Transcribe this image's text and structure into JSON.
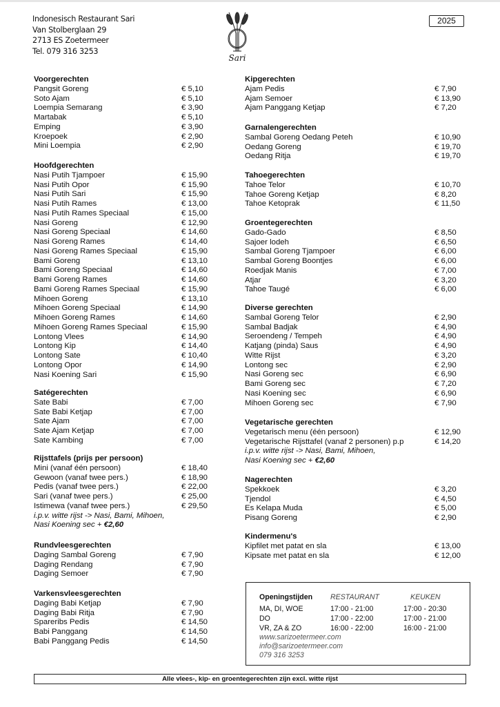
{
  "header": {
    "address_lines": [
      "Indonesisch Restaurant Sari",
      "Van Stolberglaan 29",
      "2713 ES Zoetermeer",
      "Tel. 079 316 3253"
    ],
    "logo_text": "Sari",
    "year": "2025"
  },
  "left_sections": [
    {
      "title": "Voorgerechten",
      "items": [
        {
          "name": "Pangsit Goreng",
          "price": "€ 5,10"
        },
        {
          "name": "Soto Ajam",
          "price": "€ 5,10"
        },
        {
          "name": "Loempia Semarang",
          "price": "€ 3,90"
        },
        {
          "name": "Martabak",
          "price": "€ 5,10"
        },
        {
          "name": "Emping",
          "price": "€ 3,90"
        },
        {
          "name": "Kroepoek",
          "price": "€ 2,90"
        },
        {
          "name": "Mini Loempia",
          "price": "€ 2,90"
        }
      ]
    },
    {
      "title": "Hoofdgerechten",
      "items": [
        {
          "name": "Nasi Putih Tjampoer",
          "price": "€ 15,90"
        },
        {
          "name": "Nasi Putih Opor",
          "price": "€ 15,90"
        },
        {
          "name": "Nasi Putih Sari",
          "price": "€ 15,90"
        },
        {
          "name": "Nasi Putih Rames",
          "price": "€ 13,00"
        },
        {
          "name": "Nasi Putih Rames Speciaal",
          "price": "€ 15,00"
        },
        {
          "name": "Nasi Goreng",
          "price": "€ 12,90"
        },
        {
          "name": "Nasi Goreng Speciaal",
          "price": "€ 14,60"
        },
        {
          "name": "Nasi Goreng Rames",
          "price": "€ 14,40"
        },
        {
          "name": "Nasi Goreng Rames Speciaal",
          "price": "€ 15,90"
        },
        {
          "name": "Bami Goreng",
          "price": "€ 13,10"
        },
        {
          "name": "Bami Goreng Speciaal",
          "price": "€ 14,60"
        },
        {
          "name": "Bami Goreng Rames",
          "price": "€ 14,60"
        },
        {
          "name": "Bami Goreng Rames Speciaal",
          "price": "€ 15,90"
        },
        {
          "name": "Mihoen Goreng",
          "price": "€ 13,10"
        },
        {
          "name": "Mihoen Goreng Speciaal",
          "price": "€ 14,90"
        },
        {
          "name": "Mihoen Goreng Rames",
          "price": "€ 14,60"
        },
        {
          "name": "Mihoen Goreng Rames Speciaal",
          "price": "€ 15,90"
        },
        {
          "name": "Lontong Vlees",
          "price": "€ 14,90"
        },
        {
          "name": "Lontong Kip",
          "price": "€ 14,40"
        },
        {
          "name": "Lontong Sate",
          "price": "€ 10,40"
        },
        {
          "name": "Lontong Opor",
          "price": "€ 14,90"
        },
        {
          "name": "Nasi Koening Sari",
          "price": "€ 15,90"
        }
      ]
    },
    {
      "title": "Satégerechten",
      "items": [
        {
          "name": "Sate Babi",
          "price": "€ 7,00"
        },
        {
          "name": "Sate Babi Ketjap",
          "price": "€ 7,00"
        },
        {
          "name": "Sate Ajam",
          "price": "€ 7,00"
        },
        {
          "name": "Sate Ajam Ketjap",
          "price": "€ 7,00"
        },
        {
          "name": "Sate Kambing",
          "price": "€ 7,00"
        }
      ]
    },
    {
      "title": "Rijsttafels (prijs per persoon)",
      "items": [
        {
          "name": "Mini (vanaf één persoon)",
          "price": "€ 18,40"
        },
        {
          "name": "Gewoon (vanaf twee pers.)",
          "price": "€ 18,90"
        },
        {
          "name": "Pedis (vanaf twee pers.)",
          "price": "€ 22,00"
        },
        {
          "name": "Sari (vanaf twee pers.)",
          "price": "€ 25,00"
        },
        {
          "name": "Istimewa (vanaf twee pers.)",
          "price": "€ 29,50"
        }
      ],
      "note_line1": "i.p.v. witte rijst -> Nasi, Bami, Mihoen,",
      "note_line2": "Nasi Koening sec + ",
      "note_price": "€2,60"
    },
    {
      "title": "Rundvleesgerechten",
      "items": [
        {
          "name": "Daging Sambal Goreng",
          "price": "€ 7,90"
        },
        {
          "name": "Daging Rendang",
          "price": "€ 7,90"
        },
        {
          "name": "Daging Semoer",
          "price": "€ 7,90"
        }
      ]
    },
    {
      "title": "Varkensvleesgerechten",
      "items": [
        {
          "name": "Daging Babi Ketjap",
          "price": "€ 7,90"
        },
        {
          "name": "Daging Babi Ritja",
          "price": "€ 7,90"
        },
        {
          "name": "Spareribs Pedis",
          "price": "€ 14,50"
        },
        {
          "name": "Babi Panggang",
          "price": "€ 14,50"
        },
        {
          "name": "Babi Panggang Pedis",
          "price": "€ 14,50"
        }
      ]
    }
  ],
  "right_sections": [
    {
      "title": "Kipgerechten",
      "items": [
        {
          "name": "Ajam Pedis",
          "price": "€ 7,90"
        },
        {
          "name": "Ajam Semoer",
          "price": "€ 13,90"
        },
        {
          "name": "Ajam Panggang Ketjap",
          "price": "€ 7,20"
        }
      ]
    },
    {
      "title": "Garnalengerechten",
      "items": [
        {
          "name": "Sambal Goreng Oedang Peteh",
          "price": "€ 10,90"
        },
        {
          "name": "Oedang Goreng",
          "price": "€ 19,70"
        },
        {
          "name": "Oedang Ritja",
          "price": "€ 19,70"
        }
      ]
    },
    {
      "title": "Tahoegerechten",
      "items": [
        {
          "name": "Tahoe Telor",
          "price": "€ 10,70"
        },
        {
          "name": "Tahoe Goreng Ketjap",
          "price": "€ 8,20"
        },
        {
          "name": "Tahoe Ketoprak",
          "price": "€ 11,50"
        }
      ]
    },
    {
      "title": "Groentegerechten",
      "items": [
        {
          "name": "Gado-Gado",
          "price": "€ 8,50"
        },
        {
          "name": "Sajoer lodeh",
          "price": "€ 6,50"
        },
        {
          "name": "Sambal Goreng Tjampoer",
          "price": "€ 6,00"
        },
        {
          "name": "Sambal Goreng Boontjes",
          "price": "€ 6,00"
        },
        {
          "name": "Roedjak Manis",
          "price": "€ 7,00"
        },
        {
          "name": "Atjar",
          "price": "€ 3,20"
        },
        {
          "name": "Tahoe Taugé",
          "price": "€ 6,00"
        }
      ]
    },
    {
      "title": "Diverse gerechten",
      "items": [
        {
          "name": "Sambal Goreng Telor",
          "price": "€ 2,90"
        },
        {
          "name": "Sambal Badjak",
          "price": "€ 4,90"
        },
        {
          "name": "Seroendeng / Tempeh",
          "price": "€ 4,90"
        },
        {
          "name": "Katjang (pinda) Saus",
          "price": "€ 4,90"
        },
        {
          "name": "Witte Rijst",
          "price": "€ 3,20"
        },
        {
          "name": "Lontong sec",
          "price": "€ 2,90"
        },
        {
          "name": "Nasi Goreng sec",
          "price": "€ 6,90"
        },
        {
          "name": "Bami Goreng sec",
          "price": "€ 7,20"
        },
        {
          "name": "Nasi Koening sec",
          "price": "€ 6,90"
        },
        {
          "name": "Mihoen Goreng sec",
          "price": "€ 7,90"
        }
      ]
    },
    {
      "title": "Vegetarische gerechten",
      "items": [
        {
          "name": "Vegetarisch menu (één persoon)",
          "price": "€ 12,90"
        },
        {
          "name": "Vegetarische Rijsttafel (vanaf 2 personen) p.p",
          "price": "€ 14,20"
        }
      ],
      "note_line1": "i.p.v. witte rijst -> Nasi, Bami, Mihoen,",
      "note_line2": "Nasi Koening sec + ",
      "note_price": "€2,60"
    },
    {
      "title": "Nagerechten",
      "items": [
        {
          "name": "Spekkoek",
          "price": "€ 3,20"
        },
        {
          "name": "Tjendol",
          "price": "€ 4,50"
        },
        {
          "name": "Es Kelapa Muda",
          "price": "€ 5,00"
        },
        {
          "name": "Pisang Goreng",
          "price": "€ 2,90"
        }
      ]
    },
    {
      "title": "Kindermenu's",
      "items": [
        {
          "name": "Kipfilet met patat en sla",
          "price": "€ 13,00"
        },
        {
          "name": "Kipsate met patat en sla",
          "price": "€ 12,00"
        }
      ]
    }
  ],
  "opening_hours": {
    "title": "Openingstijden",
    "col_restaurant": "RESTAURANT",
    "col_keuken": "KEUKEN",
    "rows": [
      {
        "days": "MA, DI, WOE",
        "restaurant": "17:00 - 21:00",
        "keuken": "17:00 - 20:30"
      },
      {
        "days": "DO",
        "restaurant": "17:00 - 22:00",
        "keuken": "17:00 - 21:00"
      },
      {
        "days": "VR, ZA & ZO",
        "restaurant": "16:00 - 22:00",
        "keuken": "16:00 - 21:00"
      }
    ],
    "website": "www.sarizoetermeer.com",
    "email": "info@sarizoetermeer.com",
    "phone": "079 316 3253"
  },
  "footer": "Alle vlees-, kip- en groentegerechten zijn excl. witte rijst"
}
